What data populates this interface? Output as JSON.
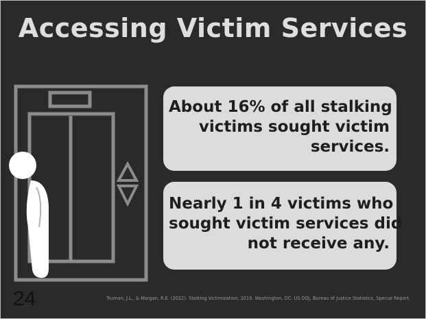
{
  "header": {
    "title": "Accessing Victim Services"
  },
  "callouts": [
    {
      "lines": [
        "About 16% of all stalking",
        "victims sought victim",
        "services."
      ]
    },
    {
      "lines": [
        "Nearly 1 in 4 victims who",
        "sought victim services did",
        "not receive any."
      ]
    }
  ],
  "footer": {
    "page_number": "24",
    "citation": "Truman, J.L., & Morgan, R.E. (2022). Stalking Victimization, 2019. Washington, DC: US DOJ, Bureau of Justice Statistics, Special Report."
  }
}
